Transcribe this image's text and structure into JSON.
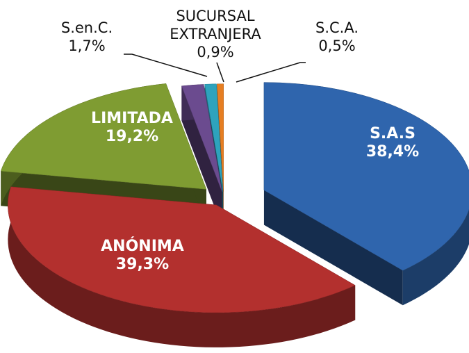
{
  "chart_data": {
    "type": "pie3d",
    "categories": [
      "S.A.S",
      "ANÓNIMA",
      "LIMITADA",
      "S.en.C.",
      "SUCURSAL EXTRANJERA",
      "S.C.A."
    ],
    "values": [
      38.4,
      39.3,
      19.2,
      1.7,
      0.9,
      0.5
    ],
    "value_labels": [
      "38,4%",
      "39,3%",
      "19,2%",
      "1,7%",
      "0,9%",
      "0,5%"
    ],
    "colors": [
      "#2f65ad",
      "#b3302e",
      "#7f9c32",
      "#6b4b8f",
      "#2ea3bd",
      "#e67e22"
    ]
  }
}
